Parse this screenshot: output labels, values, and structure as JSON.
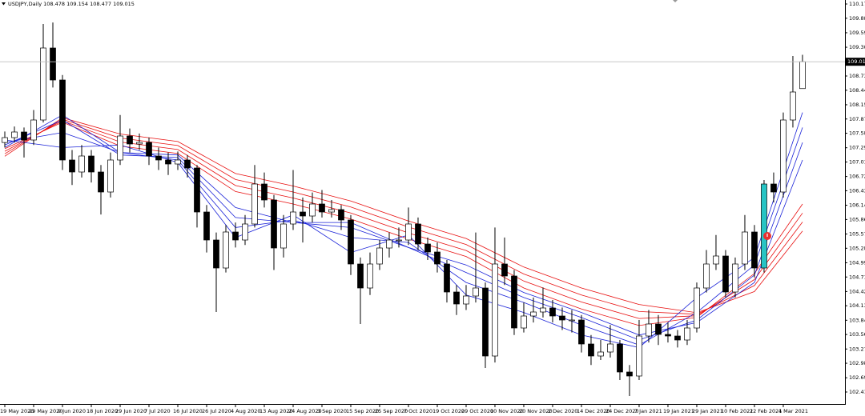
{
  "chart_data": {
    "type": "candlestick",
    "symbol": "USDJPY,Daily",
    "up_color": "#ffffff",
    "down_color": "#000000",
    "outline_color": "#000000",
    "highlight": {
      "index": 79,
      "color": "#27c4c4"
    },
    "current_price_line": true,
    "ylim": [
      102.17,
      110.25
    ],
    "xlim": [
      -0.5,
      87.42
    ],
    "yticks": [
      {
        "value": 110.17,
        "label": "110.170"
      },
      109.885,
      109.595,
      109.305,
      109.015,
      {
        "value": 108.73,
        "label": "108.730"
      },
      108.445,
      108.155,
      {
        "value": 107.87,
        "label": "107.870"
      },
      107.585,
      107.295,
      {
        "value": 107.01,
        "label": "107.010"
      },
      {
        "value": 106.72,
        "label": "106.720"
      },
      106.435,
      106.145,
      {
        "value": 105.86,
        "label": "105.860"
      },
      {
        "value": 105.57,
        "label": "105.570"
      },
      105.285,
      104.995,
      {
        "value": 104.71,
        "label": "104.710"
      },
      {
        "value": 104.42,
        "label": "104.420"
      },
      104.135,
      103.845,
      {
        "value": 103.56,
        "label": "103.560"
      },
      {
        "value": 103.27,
        "label": "103.270"
      },
      102.985,
      102.695,
      {
        "value": 102.41,
        "label": "102.410"
      }
    ],
    "xticks": [
      {
        "value": 0,
        "label": "19 May 2020"
      },
      {
        "value": 3,
        "label": "29 May 2020"
      },
      {
        "value": 6,
        "label": "9 Jun 2020"
      },
      {
        "value": 9,
        "label": "18 Jun 2020"
      },
      {
        "value": 12,
        "label": "29 Jun 2020"
      },
      {
        "value": 15,
        "label": "7 Jul 2020"
      },
      {
        "value": 18,
        "label": "16 Jul 2020"
      },
      {
        "value": 21,
        "label": "26 Jul 2020"
      },
      {
        "value": 24,
        "label": "4 Aug 2020"
      },
      {
        "value": 27,
        "label": "13 Aug 2020"
      },
      {
        "value": 30,
        "label": "24 Aug 2020"
      },
      {
        "value": 33,
        "label": "3 Sep 2020"
      },
      {
        "value": 36,
        "label": "15 Sep 2020"
      },
      {
        "value": 39,
        "label": "25 Sep 2020"
      },
      {
        "value": 42,
        "label": "7 Oct 2020"
      },
      {
        "value": 45,
        "label": "19 Oct 2020"
      },
      {
        "value": 48,
        "label": "29 Oct 2020"
      },
      {
        "value": 51,
        "label": "10 Nov 2020"
      },
      {
        "value": 54,
        "label": "20 Nov 2020"
      },
      {
        "value": 57,
        "label": "2 Dec 2020"
      },
      {
        "value": 60,
        "label": "14 Dec 2020"
      },
      {
        "value": 63,
        "label": "24 Dec 2020"
      },
      {
        "value": 66,
        "label": "7 Jan 2021"
      },
      {
        "value": 69,
        "label": "19 Jan 2021"
      },
      {
        "value": 72,
        "label": "29 Jan 2021"
      },
      {
        "value": 75,
        "label": "10 Feb 2021"
      },
      {
        "value": 78,
        "label": "22 Feb 2021"
      },
      {
        "value": 81,
        "label": "4 Mar 2021"
      }
    ],
    "candles": [
      [
        107.4,
        107.62,
        107.3,
        107.498
      ],
      [
        107.498,
        107.72,
        107.4,
        107.61
      ],
      [
        107.61,
        107.7,
        107.1,
        107.45
      ],
      [
        107.45,
        108.05,
        107.35,
        107.85
      ],
      [
        107.85,
        109.77,
        107.8,
        109.29
      ],
      [
        109.29,
        109.8,
        108.5,
        108.65
      ],
      [
        108.65,
        108.75,
        106.85,
        107.05
      ],
      [
        107.05,
        107.25,
        106.55,
        106.81
      ],
      [
        106.81,
        107.35,
        106.7,
        107.13
      ],
      [
        107.13,
        107.25,
        106.6,
        106.81
      ],
      [
        106.81,
        106.95,
        105.96,
        106.41
      ],
      [
        106.41,
        107.2,
        106.3,
        107.05
      ],
      [
        107.05,
        107.95,
        106.95,
        107.53
      ],
      [
        107.53,
        107.68,
        107.2,
        107.37
      ],
      [
        107.37,
        107.58,
        107.25,
        107.402
      ],
      [
        107.402,
        107.5,
        106.95,
        107.13
      ],
      [
        107.13,
        107.3,
        106.85,
        107.05
      ],
      [
        107.05,
        107.2,
        106.75,
        106.97
      ],
      [
        106.97,
        107.22,
        106.85,
        107.05
      ],
      [
        107.05,
        107.15,
        106.7,
        106.89
      ],
      [
        106.89,
        106.95,
        105.7,
        106.01
      ],
      [
        106.01,
        106.15,
        105.2,
        105.45
      ],
      [
        105.45,
        105.6,
        104.01,
        104.89
      ],
      [
        104.89,
        105.75,
        104.8,
        105.61
      ],
      [
        105.61,
        105.8,
        105.3,
        105.45
      ],
      [
        105.45,
        105.95,
        105.35,
        105.77
      ],
      [
        105.77,
        106.95,
        105.7,
        106.57
      ],
      [
        106.57,
        106.8,
        106.1,
        106.25
      ],
      [
        106.25,
        106.35,
        104.85,
        105.29
      ],
      [
        105.29,
        105.95,
        105.1,
        105.77
      ],
      [
        105.77,
        106.85,
        105.65,
        106.01
      ],
      [
        106.01,
        106.3,
        105.4,
        105.93
      ],
      [
        105.93,
        106.4,
        105.8,
        106.17
      ],
      [
        106.17,
        106.45,
        105.9,
        106.01
      ],
      [
        106.01,
        106.25,
        105.9,
        106.058
      ],
      [
        106.058,
        106.15,
        105.65,
        105.85
      ],
      [
        105.85,
        105.95,
        104.75,
        104.97
      ],
      [
        104.97,
        105.1,
        103.77,
        104.49
      ],
      [
        104.49,
        105.2,
        104.35,
        104.97
      ],
      [
        104.97,
        105.45,
        104.85,
        105.29
      ],
      [
        105.29,
        105.6,
        105.1,
        105.45
      ],
      [
        105.45,
        105.7,
        105.3,
        105.45
      ],
      [
        105.45,
        106.1,
        105.35,
        105.77
      ],
      [
        105.77,
        105.9,
        105.25,
        105.37
      ],
      [
        105.37,
        105.5,
        105.05,
        105.21
      ],
      [
        105.21,
        105.4,
        104.8,
        104.97
      ],
      [
        104.97,
        105.05,
        104.2,
        104.41
      ],
      [
        104.41,
        104.55,
        103.95,
        104.17
      ],
      [
        104.17,
        104.55,
        104.05,
        104.33
      ],
      [
        104.33,
        105.6,
        104.2,
        104.49
      ],
      [
        104.49,
        104.6,
        102.89,
        103.13
      ],
      [
        103.13,
        105.7,
        103.0,
        104.97
      ],
      [
        104.97,
        105.5,
        104.55,
        104.73
      ],
      [
        104.73,
        104.85,
        103.55,
        103.69
      ],
      [
        103.69,
        104.2,
        103.6,
        103.93
      ],
      [
        103.93,
        104.3,
        103.8,
        104.01
      ],
      [
        104.01,
        104.5,
        103.9,
        104.09
      ],
      [
        104.09,
        104.25,
        103.8,
        103.93
      ],
      [
        103.93,
        104.1,
        103.65,
        103.85
      ],
      [
        103.85,
        104.05,
        103.6,
        103.85
      ],
      [
        103.85,
        103.95,
        103.2,
        103.37
      ],
      [
        103.37,
        103.55,
        102.95,
        103.13
      ],
      [
        103.13,
        103.45,
        103.05,
        103.21
      ],
      [
        103.21,
        103.75,
        103.1,
        103.37
      ],
      [
        103.37,
        103.45,
        102.65,
        102.81
      ],
      [
        102.81,
        102.95,
        102.33,
        102.73
      ],
      [
        102.73,
        103.85,
        102.65,
        103.53
      ],
      [
        103.53,
        104.05,
        103.4,
        103.77
      ],
      [
        103.77,
        103.95,
        103.35,
        103.562
      ],
      [
        103.562,
        103.8,
        103.4,
        103.53
      ],
      [
        103.53,
        103.65,
        103.3,
        103.45
      ],
      [
        103.45,
        103.85,
        103.35,
        103.69
      ],
      [
        103.69,
        104.6,
        103.6,
        104.49
      ],
      [
        104.49,
        105.25,
        104.4,
        104.97
      ],
      [
        104.97,
        105.55,
        104.85,
        105.13
      ],
      [
        105.13,
        105.25,
        104.3,
        104.41
      ],
      [
        104.41,
        105.1,
        104.3,
        104.97
      ],
      [
        104.97,
        105.95,
        104.85,
        105.61
      ],
      [
        105.61,
        105.75,
        104.7,
        104.89
      ],
      [
        104.89,
        106.65,
        104.8,
        106.57
      ],
      [
        106.57,
        106.8,
        106.2,
        106.41
      ],
      [
        106.41,
        108.0,
        106.3,
        107.85
      ],
      [
        107.85,
        109.13,
        107.7,
        108.41
      ],
      [
        108.478,
        109.154,
        108.477,
        109.015
      ]
    ],
    "ma_x": [
      0,
      6,
      12,
      18,
      24,
      30,
      36,
      42,
      48,
      54,
      60,
      66,
      72,
      78,
      83
    ],
    "ribbons": [
      {
        "color": "#e81010",
        "lines": [
          [
            107.275,
            107.805,
            107.33,
            107.18,
            106.42,
            106.17,
            105.87,
            105.47,
            105.12,
            104.49,
            104.07,
            103.74,
            103.905,
            104.78,
            106.17
          ],
          [
            107.225,
            107.835,
            107.41,
            107.26,
            106.54,
            106.29,
            105.99,
            105.59,
            105.24,
            104.63,
            104.21,
            103.88,
            103.935,
            104.66,
            105.99
          ],
          [
            107.175,
            107.865,
            107.49,
            107.34,
            106.66,
            106.41,
            106.11,
            105.71,
            105.36,
            104.77,
            104.35,
            104.02,
            103.965,
            104.54,
            105.81
          ],
          [
            107.125,
            107.895,
            107.57,
            107.42,
            106.78,
            106.53,
            106.23,
            105.83,
            105.48,
            104.91,
            104.49,
            104.16,
            103.995,
            104.42,
            105.63
          ]
        ]
      },
      {
        "color": "#1a22d8",
        "lines": [
          [
            107.45,
            107.3,
            107.35,
            107.0,
            105.5,
            105.95,
            105.2,
            105.55,
            104.35,
            104.0,
            103.55,
            103.3,
            104.3,
            105.1,
            108.0
          ],
          [
            107.4,
            107.6,
            107.2,
            107.05,
            105.7,
            105.85,
            105.5,
            105.4,
            104.6,
            104.2,
            103.75,
            103.35,
            104.0,
            104.95,
            107.7
          ],
          [
            107.35,
            107.85,
            107.15,
            107.1,
            105.9,
            105.8,
            105.7,
            105.3,
            104.8,
            104.3,
            103.9,
            103.45,
            103.85,
            104.75,
            107.4
          ],
          [
            107.3,
            107.95,
            107.2,
            107.15,
            106.1,
            105.8,
            105.8,
            105.3,
            104.95,
            104.4,
            104.0,
            103.55,
            103.8,
            104.6,
            107.05
          ]
        ]
      }
    ]
  }
}
